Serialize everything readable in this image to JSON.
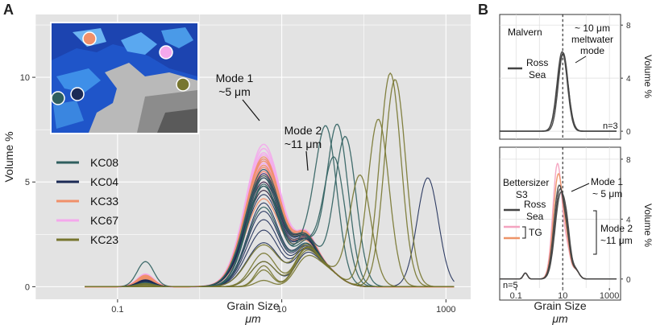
{
  "figure": {
    "panel_a_letter": "A",
    "panel_b_letter": "B"
  },
  "colors": {
    "KC08": "#2f5f5f",
    "KC04": "#1b2a55",
    "KC33": "#f0906a",
    "KC67": "#f4a8ec",
    "KC23": "#77762f",
    "RossSea": "#444444",
    "TG_pink": "#f4a3c0",
    "TG_orange": "#ee9468",
    "plot_bg": "#e3e3e3",
    "grid": "#ffffff"
  },
  "chart_data": [
    {
      "id": "A",
      "type": "line",
      "xscale": "log",
      "xlabel": "Grain Size",
      "xunit": "μm",
      "ylabel": "Volume %",
      "xlim": [
        0.01,
        2000
      ],
      "ylim": [
        -0.6,
        13
      ],
      "xticks": [
        0.1,
        10,
        1000
      ],
      "xtick_labels": [
        "0.1",
        "10",
        "1000"
      ],
      "yticks": [
        0,
        5,
        10
      ],
      "ytick_labels": [
        "0",
        "5",
        "10"
      ],
      "grid": true,
      "legend_position": "left",
      "inset_map": true,
      "legend": [
        {
          "name": "KC08",
          "color_key": "KC08"
        },
        {
          "name": "KC04",
          "color_key": "KC04"
        },
        {
          "name": "KC33",
          "color_key": "KC33"
        },
        {
          "name": "KC67",
          "color_key": "KC67"
        },
        {
          "name": "KC23",
          "color_key": "KC23"
        }
      ],
      "annotations": [
        {
          "text": "Mode 1",
          "sub": "~5 μm",
          "x": 4.5,
          "y": 8.2
        },
        {
          "text": "Mode 2",
          "sub": "~11 μm",
          "x": 13.5,
          "y": 4.8
        }
      ],
      "series_groups": [
        {
          "name": "KC67",
          "color_key": "KC67",
          "width": 1.6,
          "count": 14,
          "params": [
            [
              0.52,
              0.013,
              5.8,
              6.8,
              0.22
            ],
            [
              0.45,
              0.015,
              5.9,
              6.6,
              0.22
            ],
            [
              0.55,
              0.012,
              5.5,
              6.9,
              0.22
            ],
            [
              0.5,
              0.014,
              6.3,
              6.7,
              0.22
            ],
            [
              0.6,
              0.011,
              5.2,
              7.1,
              0.22
            ],
            [
              0.42,
              0.016,
              6.6,
              6.5,
              0.22
            ],
            [
              0.48,
              0.013,
              6.0,
              7.0,
              0.22
            ],
            [
              0.58,
              0.01,
              5.6,
              6.8,
              0.22
            ],
            [
              0.46,
              0.015,
              6.4,
              6.6,
              0.22
            ],
            [
              0.53,
              0.012,
              5.7,
              6.9,
              0.22
            ],
            [
              0.61,
              0.011,
              5.0,
              7.2,
              0.22
            ],
            [
              0.44,
              0.016,
              6.8,
              6.6,
              0.22
            ],
            [
              0.5,
              0.013,
              6.1,
              6.7,
              0.22
            ],
            [
              0.56,
              0.012,
              5.4,
              7.0,
              0.22
            ]
          ]
        },
        {
          "name": "KC33",
          "color_key": "KC33",
          "width": 1.4,
          "count": 10,
          "params": [
            [
              0.45,
              0.012,
              6.2,
              6.8,
              0.22
            ],
            [
              0.4,
              0.018,
              5.8,
              6.5,
              0.22
            ],
            [
              0.5,
              0.01,
              5.0,
              7.0,
              0.22
            ],
            [
              0.38,
              0.02,
              4.6,
              6.6,
              0.22
            ],
            [
              0.55,
              0.012,
              5.5,
              6.9,
              0.22
            ],
            [
              0.42,
              0.015,
              6.0,
              6.7,
              0.22
            ],
            [
              0.48,
              0.011,
              5.3,
              6.8,
              0.22
            ],
            [
              0.36,
              0.019,
              4.2,
              6.4,
              0.22
            ],
            [
              0.52,
              0.013,
              5.7,
              7.0,
              0.22
            ],
            [
              0.44,
              0.014,
              6.1,
              6.6,
              0.22
            ]
          ]
        },
        {
          "name": "KC04",
          "color_key": "KC04",
          "width": 1.1,
          "count": 12,
          "params": [
            [
              0.3,
              0.005,
              4.4,
              6.5,
              0.22
            ],
            [
              0.28,
              0.004,
              4.0,
              6.4,
              0.2
            ],
            [
              0.32,
              0.006,
              5.0,
              6.7,
              0.22
            ],
            [
              0.25,
              0.003,
              3.2,
              6.2,
              0.2
            ],
            [
              0.3,
              0.005,
              2.1,
              6.0,
              0.2
            ],
            [
              0.27,
              0.004,
              4.8,
              6.6,
              0.22
            ],
            [
              0.33,
              0.006,
              5.4,
              6.8,
              0.22
            ],
            [
              0.26,
              0.004,
              3.6,
              6.3,
              0.2
            ],
            [
              0.2,
              0.003,
              1.2,
              5.8,
              0.15
            ],
            [
              0.29,
              0.005,
              4.6,
              6.5,
              0.22
            ],
            [
              0.24,
              0.004,
              2.7,
              6.1,
              0.2
            ],
            [
              0.31,
              0.005,
              5.2,
              6.7,
              0.22
            ]
          ]
        },
        {
          "name": "KC08",
          "color_key": "KC08",
          "width": 1.3,
          "count": 6,
          "params": [
            [
              0.0,
              0.01,
              5.2,
              6.6,
              0.2
            ],
            [
              0.0,
              0.012,
              4.8,
              6.5,
              0.2
            ],
            [
              0.2,
              0.012,
              5.6,
              6.8,
              0.22
            ],
            [
              0.15,
              0.011,
              4.9,
              6.4,
              0.2
            ],
            [
              0.1,
              0.01,
              5.3,
              6.7,
              0.22
            ],
            [
              1.2,
              0.008,
              3.8,
              6.4,
              0.2
            ]
          ]
        },
        {
          "name": "KC23",
          "color_key": "KC23",
          "width": 1.3,
          "count": 6,
          "params": [
            [
              0.0,
              0.005,
              1.0,
              6.3,
              0.1
            ],
            [
              0.0,
              0.005,
              0.8,
              6.0,
              0.1
            ],
            [
              0.0,
              0.006,
              0.3,
              5.5,
              0.1
            ],
            [
              0.15,
              0.005,
              2.0,
              6.4,
              0.2
            ],
            [
              0.1,
              0.004,
              1.6,
              6.3,
              0.15
            ],
            [
              0.05,
              0.005,
              1.2,
              6.2,
              0.15
            ]
          ]
        }
      ],
      "special_peaks": [
        {
          "group": "KC23",
          "points": [
            [
              200,
              11.7
            ],
            [
              220,
              10.6
            ],
            [
              210,
              10.2
            ],
            [
              240,
              9.9
            ]
          ]
        },
        {
          "group": "KC08",
          "points": [
            [
              48,
              7.2
            ],
            [
              35,
              6.6
            ],
            [
              60,
              6.9
            ],
            [
              44,
              5.5
            ]
          ]
        },
        {
          "group": "KC04",
          "points": [
            [
              600,
              5.2
            ]
          ]
        },
        {
          "group": "KC23",
          "points": [
            [
              90,
              5.3
            ],
            [
              150,
              8.0
            ]
          ]
        }
      ]
    },
    {
      "id": "B-top",
      "type": "line",
      "xscale": "log",
      "ylabel": "Volume %",
      "xlim": [
        0.02,
        3000
      ],
      "ylim": [
        -0.6,
        8.8
      ],
      "yticks": [
        0,
        4,
        8
      ],
      "ytick_labels": [
        "0",
        "4",
        "8"
      ],
      "grid": true,
      "instrument": "Malvern",
      "note": "n=3",
      "annotation": [
        "~ 10 μm",
        "meltwater",
        "mode"
      ],
      "dashed_x": 10,
      "legend": [
        {
          "name": "Ross",
          "name2": "Sea",
          "color_key": "RossSea"
        }
      ],
      "series": [
        {
          "name": "Ross Sea",
          "color_key": "RossSea",
          "peak_x": 9.5,
          "peak_y": 6.0,
          "sigma": 0.22
        },
        {
          "name": "Ross Sea",
          "color_key": "RossSea",
          "peak_x": 10.0,
          "peak_y": 5.8,
          "sigma": 0.23
        },
        {
          "name": "Ross Sea",
          "color_key": "RossSea",
          "peak_x": 10.5,
          "peak_y": 5.9,
          "sigma": 0.21
        }
      ]
    },
    {
      "id": "B-bottom",
      "type": "line",
      "xscale": "log",
      "xlabel": "Grain Size",
      "xunit": "μm",
      "ylabel": "Volume %",
      "xlim": [
        0.02,
        3000
      ],
      "ylim": [
        -0.6,
        8.8
      ],
      "xticks": [
        0.1,
        10,
        1000
      ],
      "xtick_labels": [
        "0.1",
        "10",
        "1000"
      ],
      "yticks": [
        0,
        4,
        8
      ],
      "ytick_labels": [
        "0",
        "4",
        "8"
      ],
      "grid": true,
      "instrument": [
        "Bettersizer",
        "S3"
      ],
      "note": "n=5",
      "annotation_mode1": [
        "Mode 1",
        "~ 5 μm"
      ],
      "annotation_mode2": [
        "Mode 2",
        "~11 μm"
      ],
      "dashed_x": 10,
      "legend": [
        {
          "name": "Ross",
          "name2": "Sea",
          "color_key": "RossSea"
        },
        {
          "name": "TG",
          "color_key": "TG_pink"
        },
        {
          "name": "",
          "color_key": "TG_orange"
        }
      ],
      "series": [
        {
          "name": "TG",
          "color_key": "TG_pink",
          "peak_x": 6.0,
          "peak_y": 7.7,
          "sigma": 0.2
        },
        {
          "name": "TG",
          "color_key": "TG_orange",
          "peak_x": 6.5,
          "peak_y": 7.0,
          "sigma": 0.21
        },
        {
          "name": "Ross Sea",
          "color_key": "RossSea",
          "peak_x": 7.0,
          "peak_y": 6.2,
          "sigma": 0.22
        },
        {
          "name": "Ross Sea",
          "color_key": "RossSea",
          "peak_x": 7.5,
          "peak_y": 5.9,
          "sigma": 0.22
        },
        {
          "name": "Ross Sea",
          "color_key": "RossSea",
          "peak_x": 8.0,
          "peak_y": 5.6,
          "sigma": 0.23
        }
      ]
    }
  ]
}
